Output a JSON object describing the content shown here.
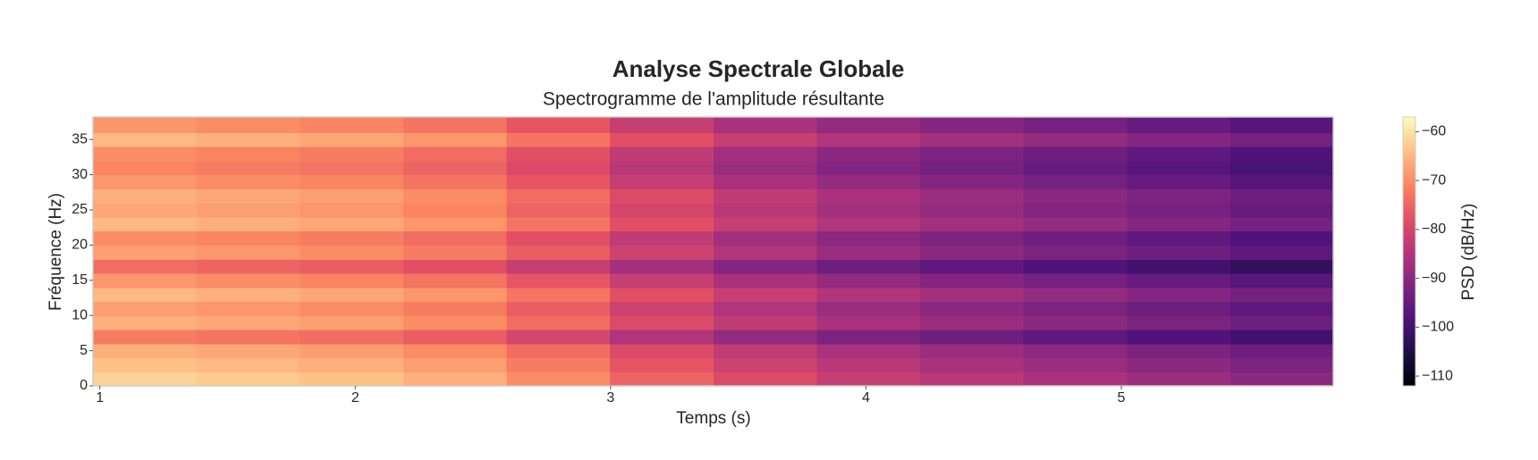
{
  "chart_data": {
    "type": "heatmap",
    "title": "Analyse Spectrale Globale",
    "subtitle": "Spectrogramme de l'amplitude résultante",
    "xlabel": "Temps (s)",
    "ylabel": "Fréquence (Hz)",
    "colorbar_label": "PSD (dB/Hz)",
    "colormap": "magma",
    "x": [
      1.175,
      1.58,
      1.985,
      2.39,
      2.795,
      3.2,
      3.605,
      4.01,
      4.415,
      4.82,
      5.225,
      5.63
    ],
    "y": [
      1,
      3,
      5,
      7,
      9,
      11,
      13,
      15,
      17,
      19,
      21,
      23,
      25,
      27,
      29,
      31,
      33,
      35,
      37
    ],
    "z": [
      [
        -62,
        -63,
        -64,
        -66,
        -70,
        -75,
        -79,
        -82,
        -84,
        -86,
        -88,
        -90
      ],
      [
        -64,
        -65,
        -66,
        -68,
        -72,
        -77,
        -81,
        -84,
        -86,
        -88,
        -90,
        -92
      ],
      [
        -66,
        -67,
        -68,
        -70,
        -74,
        -79,
        -83,
        -86,
        -88,
        -90,
        -92,
        -94
      ],
      [
        -72,
        -73,
        -74,
        -76,
        -80,
        -85,
        -89,
        -92,
        -94,
        -96,
        -98,
        -100
      ],
      [
        -66,
        -67,
        -68,
        -70,
        -74,
        -79,
        -83,
        -86,
        -88,
        -90,
        -92,
        -94
      ],
      [
        -68,
        -69,
        -70,
        -72,
        -76,
        -81,
        -85,
        -88,
        -90,
        -92,
        -94,
        -96
      ],
      [
        -65,
        -66,
        -67,
        -69,
        -73,
        -78,
        -82,
        -85,
        -87,
        -89,
        -91,
        -93
      ],
      [
        -69,
        -70,
        -71,
        -73,
        -77,
        -82,
        -86,
        -89,
        -91,
        -93,
        -95,
        -97
      ],
      [
        -74,
        -75,
        -76,
        -78,
        -82,
        -87,
        -91,
        -94,
        -96,
        -98,
        -100,
        -102
      ],
      [
        -68,
        -69,
        -70,
        -72,
        -76,
        -81,
        -85,
        -88,
        -90,
        -92,
        -94,
        -96
      ],
      [
        -70,
        -71,
        -72,
        -74,
        -78,
        -83,
        -87,
        -90,
        -92,
        -94,
        -96,
        -98
      ],
      [
        -65,
        -66,
        -67,
        -69,
        -73,
        -78,
        -82,
        -85,
        -87,
        -89,
        -91,
        -93
      ],
      [
        -67,
        -68,
        -69,
        -71,
        -75,
        -80,
        -84,
        -87,
        -89,
        -91,
        -93,
        -95
      ],
      [
        -66,
        -67,
        -68,
        -70,
        -74,
        -79,
        -83,
        -86,
        -88,
        -90,
        -92,
        -94
      ],
      [
        -69,
        -70,
        -71,
        -73,
        -77,
        -82,
        -86,
        -89,
        -91,
        -93,
        -95,
        -97
      ],
      [
        -71,
        -72,
        -73,
        -75,
        -79,
        -84,
        -88,
        -91,
        -93,
        -95,
        -97,
        -99
      ],
      [
        -70,
        -71,
        -72,
        -74,
        -78,
        -83,
        -87,
        -90,
        -92,
        -94,
        -96,
        -98
      ],
      [
        -65,
        -66,
        -67,
        -69,
        -73,
        -78,
        -82,
        -85,
        -87,
        -89,
        -91,
        -93
      ],
      [
        -69,
        -70,
        -71,
        -73,
        -77,
        -82,
        -86,
        -89,
        -91,
        -93,
        -95,
        -97
      ]
    ],
    "xlim": [
      0.973,
      5.83
    ],
    "ylim": [
      0,
      38.2
    ],
    "clim": [
      -112,
      -57
    ],
    "xticks": [
      1,
      2,
      3,
      4,
      5
    ],
    "yticks": [
      0,
      5,
      10,
      15,
      20,
      25,
      30,
      35
    ],
    "cticks": [
      {
        "value": -60,
        "label": "−60"
      },
      {
        "value": -70,
        "label": "−70"
      },
      {
        "value": -80,
        "label": "−80"
      },
      {
        "value": -90,
        "label": "−90"
      },
      {
        "value": -100,
        "label": "−100"
      },
      {
        "value": -110,
        "label": "−110"
      }
    ]
  }
}
